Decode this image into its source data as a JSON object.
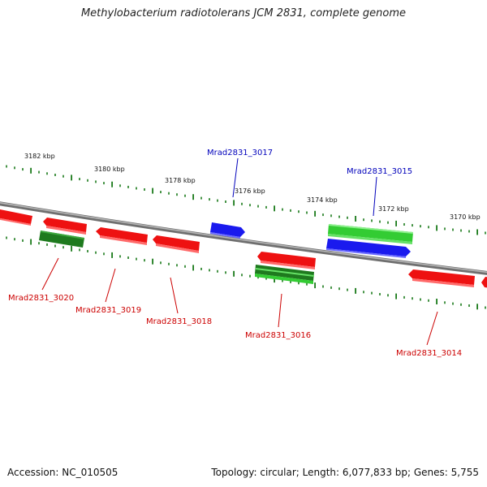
{
  "title": "Methylobacterium radiotolerans JCM 2831, complete genome",
  "footer": {
    "accession": "Accession: NC_010505",
    "summary": "Topology: circular; Length: 6,077,833 bp; Genes: 5,755"
  },
  "colors": {
    "forward_cds": "#1a1aee",
    "reverse_cds": "#ee1111",
    "forward_rna": "#33cc33",
    "reverse_rna": "#1e7a1e",
    "ticks": "#1a7a1a",
    "backbone": "#8a8a8a",
    "label_blue": "#0000bb",
    "label_red": "#cc0000"
  },
  "ticks": {
    "upper": [
      "3182 kbp",
      "3180 kbp",
      "3178 kbp",
      "3176 kbp",
      "3174 kbp",
      "3172 kbp",
      "3170 kbp"
    ]
  },
  "genes": {
    "upper_labels": [
      "Mrad2831_3017",
      "Mrad2831_3015"
    ],
    "lower_labels": [
      "Mrad2831_3020",
      "Mrad2831_3019",
      "Mrad2831_3018",
      "Mrad2831_3016",
      "Mrad2831_3014"
    ]
  }
}
